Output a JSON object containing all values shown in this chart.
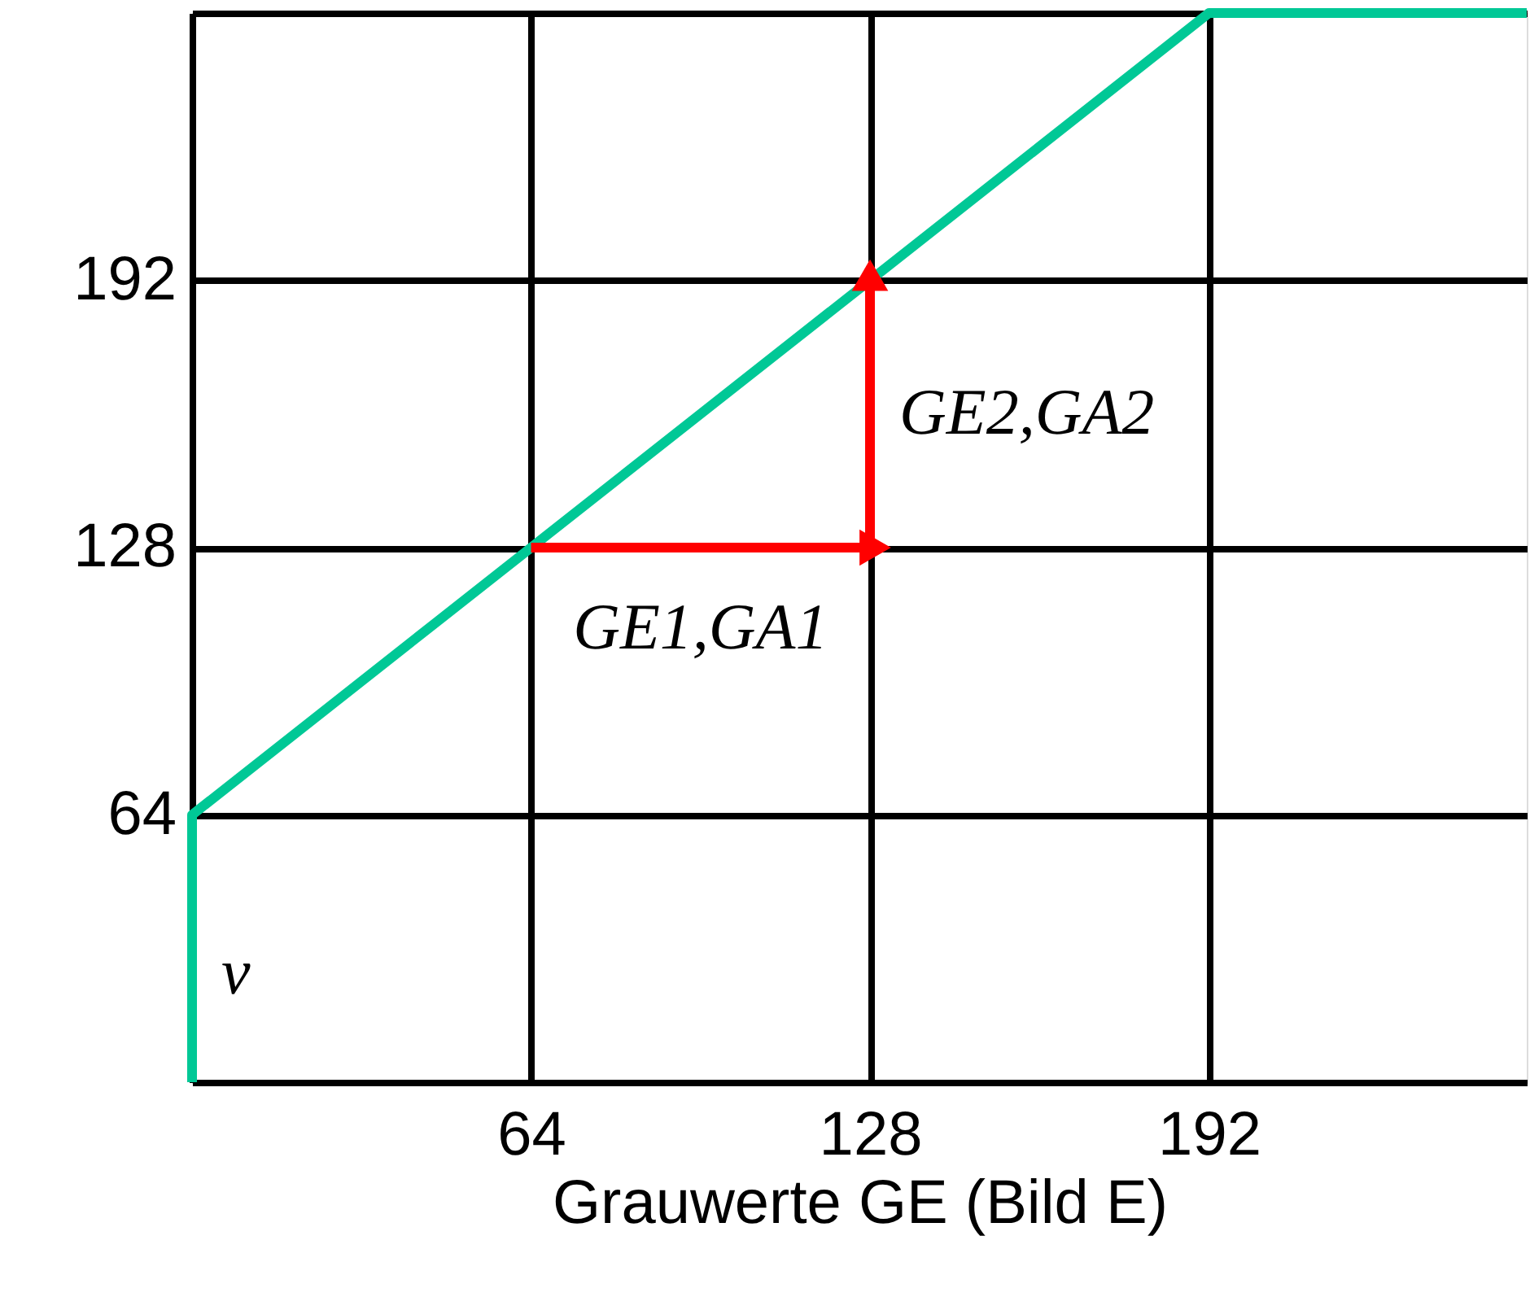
{
  "chart_data": {
    "type": "line",
    "xlabel": "Grauwerte GE (Bild E)",
    "xlim": [
      0,
      252
    ],
    "ylim": [
      0,
      256
    ],
    "xticks": [
      {
        "value": 0,
        "label": null
      },
      64,
      128,
      192
    ],
    "yticks": [
      {
        "value": 0,
        "label": null
      },
      64,
      128,
      192,
      {
        "value": 256,
        "label": null
      }
    ],
    "grid": true,
    "marker": "none",
    "line_style": "solid",
    "series": [
      {
        "color": "#00c896",
        "x": [
          0,
          0,
          192,
          252
        ],
        "values": [
          0,
          64,
          256,
          256
        ]
      },
      {
        "color": "#ff0000",
        "x": [
          64,
          128,
          128
        ],
        "values": [
          128,
          128,
          192
        ],
        "marker": "triangle"
      }
    ],
    "annotations": [
      {
        "text": "GE1,GA1",
        "x": 96,
        "y": 128
      },
      {
        "text": "GE2,GA2",
        "x": 128,
        "y": 160
      },
      {
        "text": "v",
        "x": 0,
        "y": 26
      }
    ]
  }
}
